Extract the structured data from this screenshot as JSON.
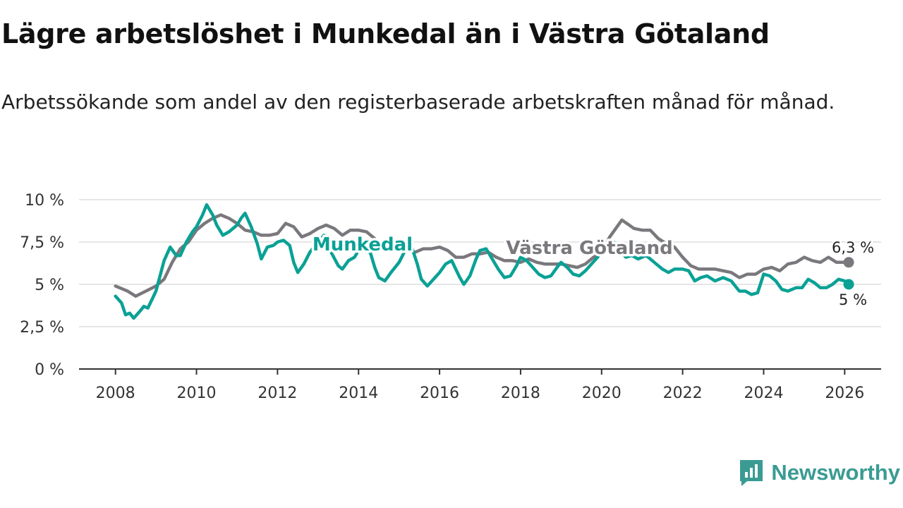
{
  "title": "Lägre arbetslöshet i Munkedal än i Västra Götaland",
  "subtitle": "Arbetssökande som andel av den registerbaserade arbetskraften månad för månad.",
  "brand": {
    "name": "Newsworthy",
    "icon": "newsworthy-logo-icon",
    "color": "#3a9b93"
  },
  "chart_data": {
    "type": "line",
    "title": "Lägre arbetslöshet i Munkedal än i Västra Götaland",
    "xlabel": "",
    "ylabel": "",
    "xlim": [
      2007.1,
      2026.9
    ],
    "ylim": [
      0,
      10
    ],
    "grid": true,
    "legend": "direct labels",
    "x_ticks": [
      {
        "value": 2008,
        "label": "2008"
      },
      {
        "value": 2010,
        "label": "2010"
      },
      {
        "value": 2012,
        "label": "2012"
      },
      {
        "value": 2014,
        "label": "2014"
      },
      {
        "value": 2016,
        "label": "2016"
      },
      {
        "value": 2018,
        "label": "2018"
      },
      {
        "value": 2020,
        "label": "2020"
      },
      {
        "value": 2022,
        "label": "2022"
      },
      {
        "value": 2024,
        "label": "2024"
      },
      {
        "value": 2026,
        "label": "2026"
      }
    ],
    "y_ticks": [
      {
        "value": 0,
        "label": "0 %"
      },
      {
        "value": 2.5,
        "label": "2,5 %"
      },
      {
        "value": 5,
        "label": "5 %"
      },
      {
        "value": 7.5,
        "label": "7,5 %"
      },
      {
        "value": 10,
        "label": "10 %"
      }
    ],
    "series": [
      {
        "name": "Västra Götaland",
        "label": "Västra Götaland",
        "color": "#7a787d",
        "label_position": [
          2019.7,
          6.8
        ],
        "end_label": "6,3 %",
        "points": [
          [
            2008.0,
            4.9
          ],
          [
            2008.3,
            4.6
          ],
          [
            2008.5,
            4.3
          ],
          [
            2008.75,
            4.6
          ],
          [
            2009.0,
            4.9
          ],
          [
            2009.2,
            5.3
          ],
          [
            2009.4,
            6.3
          ],
          [
            2009.6,
            7.1
          ],
          [
            2009.8,
            7.5
          ],
          [
            2010.0,
            8.2
          ],
          [
            2010.2,
            8.6
          ],
          [
            2010.4,
            8.9
          ],
          [
            2010.6,
            9.1
          ],
          [
            2010.8,
            8.9
          ],
          [
            2011.0,
            8.6
          ],
          [
            2011.2,
            8.2
          ],
          [
            2011.4,
            8.1
          ],
          [
            2011.6,
            7.9
          ],
          [
            2011.8,
            7.9
          ],
          [
            2012.0,
            8.0
          ],
          [
            2012.2,
            8.6
          ],
          [
            2012.4,
            8.4
          ],
          [
            2012.6,
            7.8
          ],
          [
            2012.8,
            8.0
          ],
          [
            2013.0,
            8.3
          ],
          [
            2013.2,
            8.5
          ],
          [
            2013.4,
            8.3
          ],
          [
            2013.6,
            7.9
          ],
          [
            2013.8,
            8.2
          ],
          [
            2014.0,
            8.2
          ],
          [
            2014.2,
            8.1
          ],
          [
            2014.4,
            7.7
          ],
          [
            2014.6,
            7.2
          ],
          [
            2014.8,
            7.3
          ],
          [
            2015.0,
            7.2
          ],
          [
            2015.2,
            7.0
          ],
          [
            2015.4,
            6.9
          ],
          [
            2015.6,
            7.1
          ],
          [
            2015.8,
            7.1
          ],
          [
            2016.0,
            7.2
          ],
          [
            2016.2,
            7.0
          ],
          [
            2016.4,
            6.6
          ],
          [
            2016.6,
            6.6
          ],
          [
            2016.8,
            6.8
          ],
          [
            2017.0,
            6.8
          ],
          [
            2017.2,
            6.9
          ],
          [
            2017.4,
            6.6
          ],
          [
            2017.6,
            6.4
          ],
          [
            2017.8,
            6.4
          ],
          [
            2018.0,
            6.3
          ],
          [
            2018.2,
            6.5
          ],
          [
            2018.4,
            6.3
          ],
          [
            2018.6,
            6.2
          ],
          [
            2018.8,
            6.2
          ],
          [
            2019.0,
            6.2
          ],
          [
            2019.2,
            6.1
          ],
          [
            2019.4,
            6.0
          ],
          [
            2019.6,
            6.2
          ],
          [
            2019.8,
            6.6
          ],
          [
            2020.0,
            6.9
          ],
          [
            2020.2,
            7.8
          ],
          [
            2020.5,
            8.8
          ],
          [
            2020.8,
            8.3
          ],
          [
            2021.0,
            8.2
          ],
          [
            2021.2,
            8.2
          ],
          [
            2021.4,
            7.7
          ],
          [
            2021.6,
            7.4
          ],
          [
            2021.8,
            7.2
          ],
          [
            2022.0,
            6.6
          ],
          [
            2022.2,
            6.1
          ],
          [
            2022.4,
            5.9
          ],
          [
            2022.6,
            5.9
          ],
          [
            2022.8,
            5.9
          ],
          [
            2023.0,
            5.8
          ],
          [
            2023.2,
            5.7
          ],
          [
            2023.4,
            5.4
          ],
          [
            2023.6,
            5.6
          ],
          [
            2023.8,
            5.6
          ],
          [
            2024.0,
            5.9
          ],
          [
            2024.2,
            6.0
          ],
          [
            2024.4,
            5.8
          ],
          [
            2024.6,
            6.2
          ],
          [
            2024.8,
            6.3
          ],
          [
            2025.0,
            6.6
          ],
          [
            2025.2,
            6.4
          ],
          [
            2025.4,
            6.3
          ],
          [
            2025.6,
            6.6
          ],
          [
            2025.8,
            6.3
          ],
          [
            2026.1,
            6.3
          ]
        ]
      },
      {
        "name": "Munkedal",
        "label": "Munkedal",
        "color": "#0aa195",
        "label_position": [
          2014.1,
          7.0
        ],
        "end_label": "5 %",
        "points": [
          [
            2008.0,
            4.3
          ],
          [
            2008.15,
            3.9
          ],
          [
            2008.25,
            3.2
          ],
          [
            2008.35,
            3.3
          ],
          [
            2008.45,
            3.0
          ],
          [
            2008.6,
            3.4
          ],
          [
            2008.7,
            3.7
          ],
          [
            2008.8,
            3.6
          ],
          [
            2009.0,
            4.6
          ],
          [
            2009.2,
            6.4
          ],
          [
            2009.35,
            7.2
          ],
          [
            2009.5,
            6.7
          ],
          [
            2009.6,
            6.7
          ],
          [
            2009.75,
            7.5
          ],
          [
            2009.9,
            8.1
          ],
          [
            2010.0,
            8.4
          ],
          [
            2010.15,
            9.1
          ],
          [
            2010.25,
            9.7
          ],
          [
            2010.4,
            9.1
          ],
          [
            2010.5,
            8.5
          ],
          [
            2010.65,
            7.9
          ],
          [
            2010.8,
            8.1
          ],
          [
            2011.0,
            8.5
          ],
          [
            2011.1,
            8.9
          ],
          [
            2011.2,
            9.2
          ],
          [
            2011.35,
            8.4
          ],
          [
            2011.5,
            7.4
          ],
          [
            2011.6,
            6.5
          ],
          [
            2011.75,
            7.2
          ],
          [
            2011.9,
            7.3
          ],
          [
            2012.0,
            7.5
          ],
          [
            2012.15,
            7.6
          ],
          [
            2012.3,
            7.3
          ],
          [
            2012.4,
            6.3
          ],
          [
            2012.5,
            5.7
          ],
          [
            2012.65,
            6.2
          ],
          [
            2012.8,
            6.9
          ],
          [
            2013.0,
            7.5
          ],
          [
            2013.15,
            7.9
          ],
          [
            2013.3,
            7.0
          ],
          [
            2013.5,
            6.1
          ],
          [
            2013.6,
            5.9
          ],
          [
            2013.75,
            6.4
          ],
          [
            2013.9,
            6.6
          ],
          [
            2014.0,
            7.0
          ],
          [
            2014.15,
            7.4
          ],
          [
            2014.3,
            6.8
          ],
          [
            2014.4,
            6.0
          ],
          [
            2014.5,
            5.4
          ],
          [
            2014.65,
            5.2
          ],
          [
            2014.8,
            5.7
          ],
          [
            2015.0,
            6.3
          ],
          [
            2015.15,
            7.0
          ],
          [
            2015.3,
            7.3
          ],
          [
            2015.45,
            6.2
          ],
          [
            2015.55,
            5.3
          ],
          [
            2015.7,
            4.9
          ],
          [
            2015.85,
            5.3
          ],
          [
            2016.0,
            5.7
          ],
          [
            2016.15,
            6.2
          ],
          [
            2016.3,
            6.4
          ],
          [
            2016.4,
            5.9
          ],
          [
            2016.5,
            5.4
          ],
          [
            2016.6,
            5.0
          ],
          [
            2016.75,
            5.5
          ],
          [
            2016.9,
            6.5
          ],
          [
            2017.0,
            7.0
          ],
          [
            2017.15,
            7.1
          ],
          [
            2017.3,
            6.5
          ],
          [
            2017.45,
            5.9
          ],
          [
            2017.6,
            5.4
          ],
          [
            2017.75,
            5.5
          ],
          [
            2017.9,
            6.1
          ],
          [
            2018.0,
            6.6
          ],
          [
            2018.15,
            6.4
          ],
          [
            2018.3,
            6.0
          ],
          [
            2018.45,
            5.6
          ],
          [
            2018.6,
            5.4
          ],
          [
            2018.75,
            5.5
          ],
          [
            2018.9,
            6.0
          ],
          [
            2019.0,
            6.3
          ],
          [
            2019.15,
            6.0
          ],
          [
            2019.3,
            5.6
          ],
          [
            2019.45,
            5.5
          ],
          [
            2019.6,
            5.8
          ],
          [
            2019.75,
            6.2
          ],
          [
            2019.9,
            6.6
          ],
          [
            2020.0,
            6.9
          ],
          [
            2020.15,
            7.1
          ],
          [
            2020.3,
            7.5
          ],
          [
            2020.45,
            7.0
          ],
          [
            2020.6,
            6.6
          ],
          [
            2020.75,
            6.7
          ],
          [
            2020.9,
            6.5
          ],
          [
            2021.1,
            6.7
          ],
          [
            2021.3,
            6.3
          ],
          [
            2021.5,
            5.9
          ],
          [
            2021.65,
            5.7
          ],
          [
            2021.8,
            5.9
          ],
          [
            2022.0,
            5.9
          ],
          [
            2022.15,
            5.8
          ],
          [
            2022.3,
            5.2
          ],
          [
            2022.45,
            5.4
          ],
          [
            2022.6,
            5.5
          ],
          [
            2022.8,
            5.2
          ],
          [
            2023.0,
            5.4
          ],
          [
            2023.2,
            5.2
          ],
          [
            2023.4,
            4.6
          ],
          [
            2023.55,
            4.6
          ],
          [
            2023.7,
            4.4
          ],
          [
            2023.85,
            4.5
          ],
          [
            2024.0,
            5.6
          ],
          [
            2024.15,
            5.5
          ],
          [
            2024.3,
            5.2
          ],
          [
            2024.45,
            4.7
          ],
          [
            2024.6,
            4.6
          ],
          [
            2024.8,
            4.8
          ],
          [
            2024.95,
            4.8
          ],
          [
            2025.1,
            5.3
          ],
          [
            2025.25,
            5.1
          ],
          [
            2025.4,
            4.8
          ],
          [
            2025.55,
            4.8
          ],
          [
            2025.7,
            5.0
          ],
          [
            2025.85,
            5.3
          ],
          [
            2026.0,
            5.2
          ],
          [
            2026.1,
            5.0
          ]
        ]
      }
    ]
  }
}
